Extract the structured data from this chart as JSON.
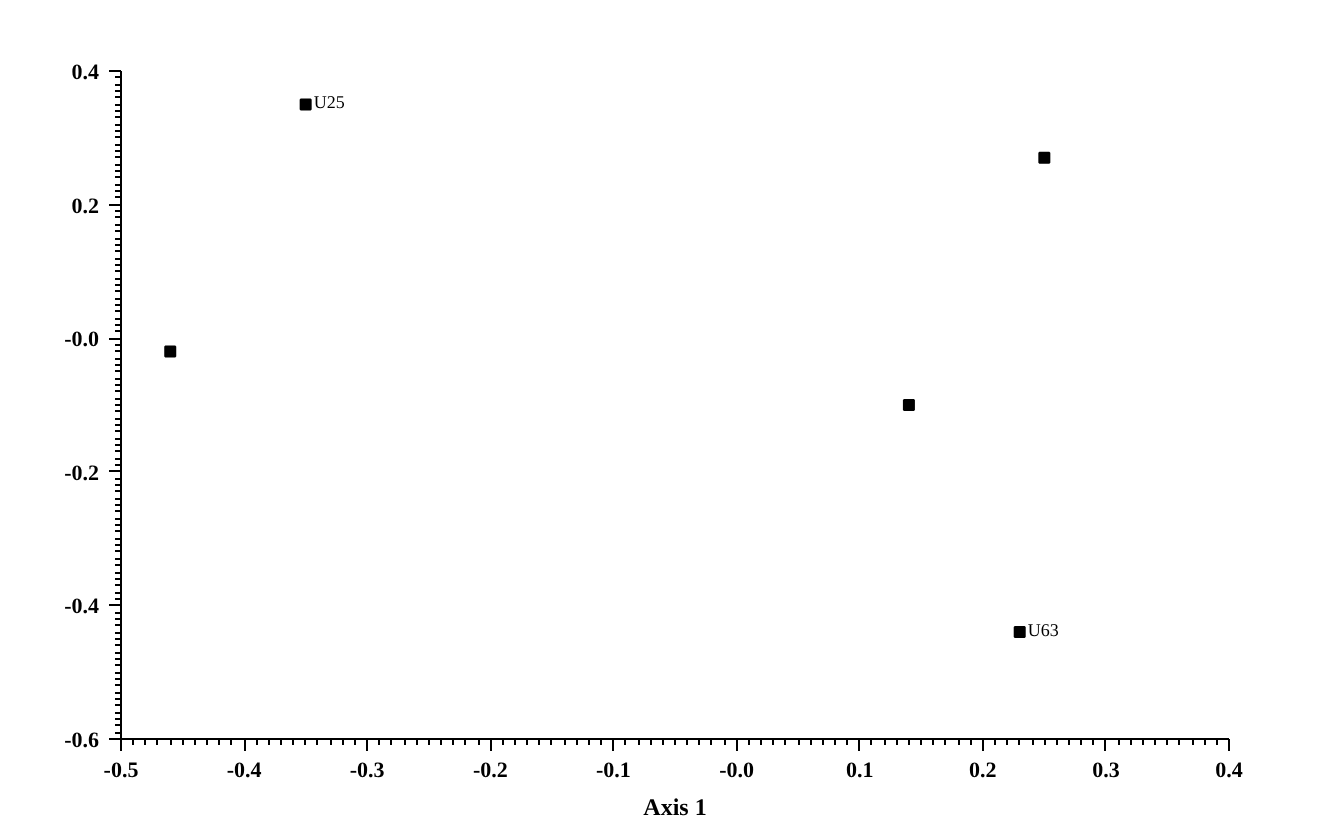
{
  "chart_data": {
    "type": "scatter",
    "xlabel": "Axis 1",
    "x": [
      -0.35,
      -0.46,
      0.14,
      0.25,
      0.23
    ],
    "series": [
      {
        "color": "#000000",
        "values": [
          0.35,
          -0.02,
          -0.1,
          0.27,
          -0.44
        ],
        "value_labels": [
          "U25",
          null,
          null,
          null,
          "U63"
        ]
      }
    ],
    "marker": "square",
    "grid": false,
    "xlim": [
      -0.5,
      0.4
    ],
    "xticks": [
      -0.5,
      -0.4,
      -0.3,
      -0.2,
      -0.1,
      {
        "value": 0,
        "label": "-0.0"
      },
      0.1,
      0.2,
      0.3,
      0.4
    ],
    "ylim": [
      -0.6,
      0.4
    ],
    "yticks": [
      -0.6,
      -0.4,
      -0.2,
      {
        "value": 0,
        "label": "-0.0"
      },
      0.2,
      0.4
    ]
  }
}
